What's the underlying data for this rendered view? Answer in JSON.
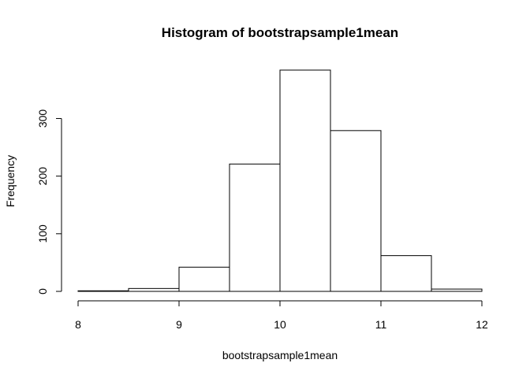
{
  "chart_data": {
    "type": "bar",
    "subtype": "histogram",
    "title": "Histogram of bootstrapsample1mean",
    "xlabel": "bootstrapsample1mean",
    "ylabel": "Frequency",
    "bins": [
      {
        "start": 8.0,
        "end": 8.5,
        "count": 1
      },
      {
        "start": 8.5,
        "end": 9.0,
        "count": 5
      },
      {
        "start": 9.0,
        "end": 9.5,
        "count": 42
      },
      {
        "start": 9.5,
        "end": 10.0,
        "count": 221
      },
      {
        "start": 10.0,
        "end": 10.5,
        "count": 384
      },
      {
        "start": 10.5,
        "end": 11.0,
        "count": 279
      },
      {
        "start": 11.0,
        "end": 11.5,
        "count": 62
      },
      {
        "start": 11.5,
        "end": 12.0,
        "count": 4
      }
    ],
    "xlim": [
      8,
      12
    ],
    "ylim": [
      0,
      384
    ],
    "x_ticks": [
      "8",
      "9",
      "10",
      "11",
      "12"
    ],
    "y_ticks": [
      "0",
      "100",
      "200",
      "300"
    ],
    "grid": false,
    "legend": "none",
    "colors": {
      "bar_fill": "#ffffff",
      "bar_stroke": "#000000",
      "text": "#000000",
      "background": "#ffffff"
    }
  }
}
